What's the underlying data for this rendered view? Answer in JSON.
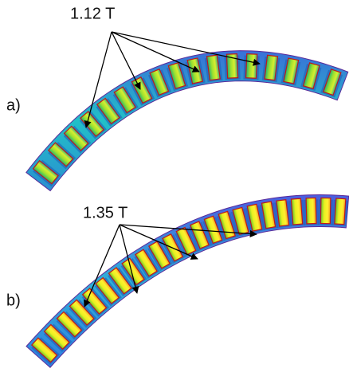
{
  "panels": [
    {
      "label": "a)",
      "annotation": "1.12 T"
    },
    {
      "label": "b)",
      "annotation": "1.35 T"
    }
  ]
}
